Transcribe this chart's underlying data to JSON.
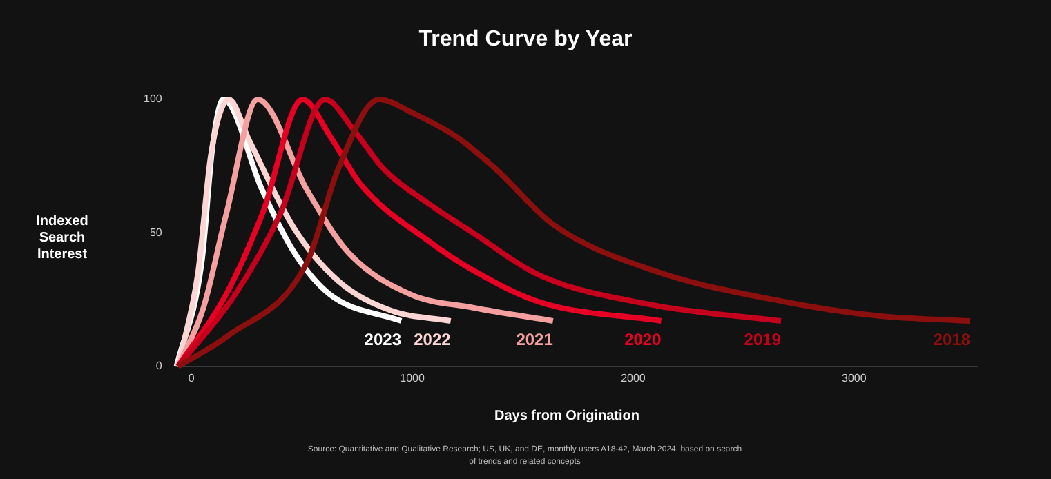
{
  "chart_data": {
    "type": "line",
    "title": "Trend Curve by Year",
    "xlabel": "Days from Origination",
    "ylabel": "Indexed Search Interest",
    "xlim": [
      -70,
      3560
    ],
    "xticks": [
      0,
      1000,
      2000,
      3000
    ],
    "ylim": [
      0,
      100
    ],
    "yticks": [
      0,
      50,
      100
    ],
    "grid": false,
    "legend": false,
    "marker": "none",
    "line_style": "solid",
    "series": [
      {
        "name": "2018",
        "color": "#8b0f0f",
        "x": [
          -60,
          158,
          524,
          665,
          849,
          1000,
          1200,
          1377,
          1640,
          2088,
          2698,
          3100,
          3526
        ],
        "values": [
          0,
          11,
          39,
          74,
          100,
          95,
          86,
          74,
          53,
          36,
          24,
          19,
          17
        ]
      },
      {
        "name": "2019",
        "color": "#c4001c",
        "x": [
          -60,
          199,
          402,
          605,
          740,
          870,
          1073,
          1275,
          1580,
          2088,
          2669
        ],
        "values": [
          0,
          27,
          57,
          100,
          88,
          74,
          61,
          50,
          34,
          23,
          17
        ]
      },
      {
        "name": "2020",
        "color": "#e60023",
        "x": [
          -60,
          158,
          321,
          504,
          630,
          768,
          1073,
          1275,
          1580,
          2127
        ],
        "values": [
          0,
          27,
          57,
          100,
          86,
          68,
          47,
          36,
          24,
          17
        ]
      },
      {
        "name": "2021",
        "color": "#f4a0a0",
        "x": [
          -60,
          55,
          158,
          300,
          524,
          707,
          991,
          1275,
          1637
        ],
        "values": [
          0,
          22,
          57,
          100,
          66,
          43,
          27,
          22,
          17
        ]
      },
      {
        "name": "2022",
        "color": "#fcd5d5",
        "x": [
          -60,
          30,
          90,
          170,
          260,
          463,
          665,
          900,
          1174
        ],
        "values": [
          0,
          35,
          80,
          100,
          85,
          52,
          32,
          21,
          17
        ]
      },
      {
        "name": "2023",
        "color": "#ffffff",
        "x": [
          -67,
          47,
          97,
          145,
          321,
          463,
          626,
          950
        ],
        "values": [
          0,
          39,
          83,
          100,
          66,
          43,
          27,
          17
        ]
      }
    ],
    "annotations": [
      "Source: Quantitative and Qualitative Research; US, UK, and DE, monthly users A18-42, March 2024, based on search of trends and related concepts"
    ]
  }
}
